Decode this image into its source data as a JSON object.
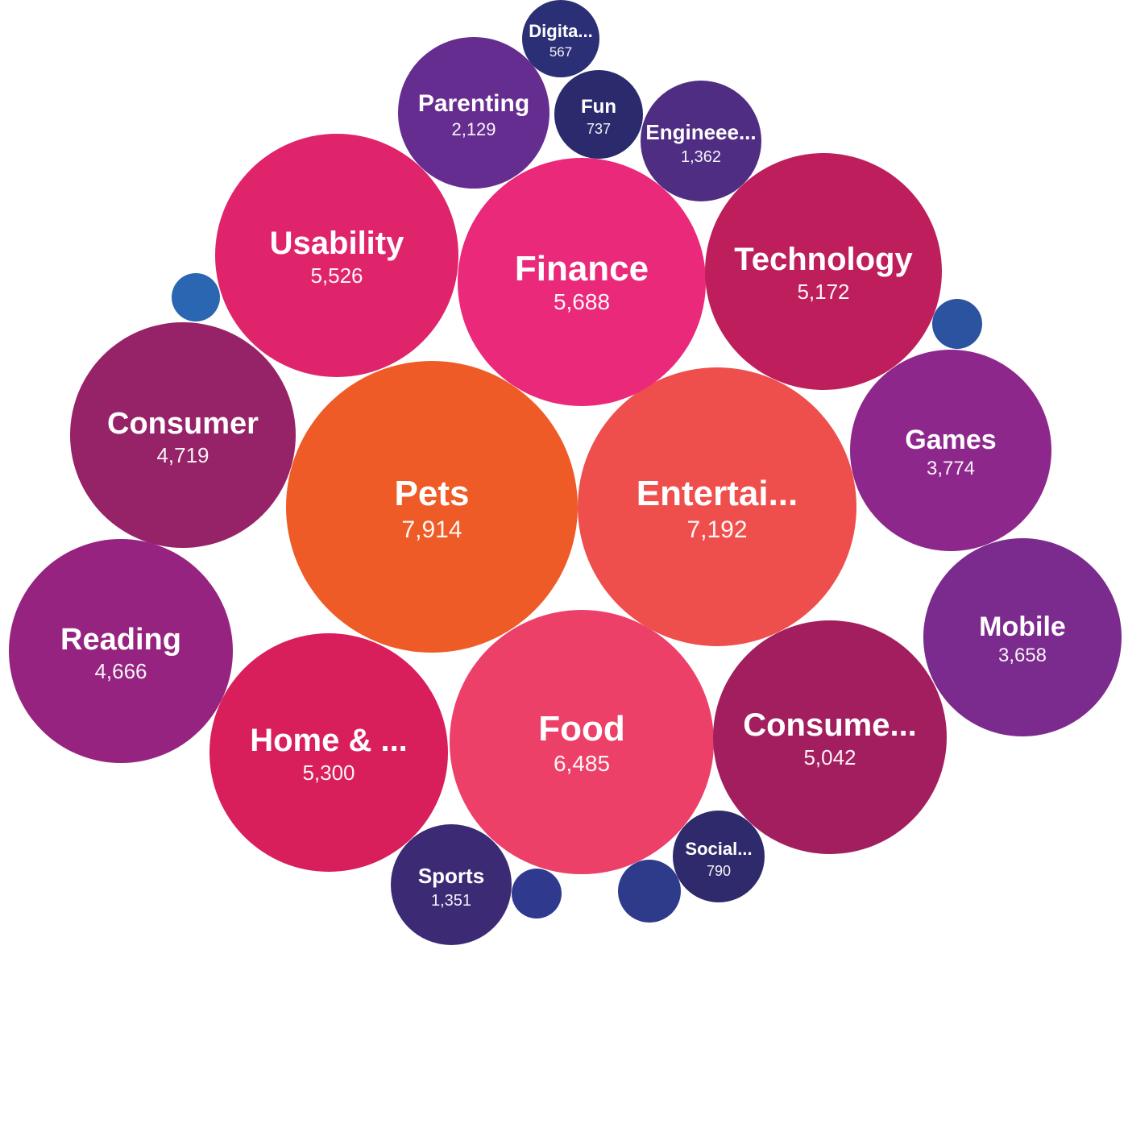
{
  "chart_data": {
    "type": "bubble",
    "title": "",
    "series": [
      {
        "label": "Pets",
        "value": "7,914",
        "color": "#ef5b26"
      },
      {
        "label": "Entertai...",
        "value": "7,192",
        "color": "#ee4f4d"
      },
      {
        "label": "Food",
        "value": "6,485",
        "color": "#ec4069"
      },
      {
        "label": "Finance",
        "value": "5,688",
        "color": "#ea297a"
      },
      {
        "label": "Usability",
        "value": "5,526",
        "color": "#e0246c"
      },
      {
        "label": "Home & ...",
        "value": "5,300",
        "color": "#d81e5b"
      },
      {
        "label": "Technology",
        "value": "5,172",
        "color": "#be1e5b"
      },
      {
        "label": "Consume...",
        "value": "5,042",
        "color": "#a21e5f"
      },
      {
        "label": "Consumer",
        "value": "4,719",
        "color": "#962267"
      },
      {
        "label": "Reading",
        "value": "4,666",
        "color": "#962380"
      },
      {
        "label": "Games",
        "value": "3,774",
        "color": "#8e278c"
      },
      {
        "label": "Mobile",
        "value": "3,658",
        "color": "#7b2a8d"
      },
      {
        "label": "Parenting",
        "value": "2,129",
        "color": "#662d91"
      },
      {
        "label": "Engineee...",
        "value": "1,362",
        "color": "#4f2d83"
      },
      {
        "label": "Sports",
        "value": "1,351",
        "color": "#3c2a75"
      },
      {
        "label": "Social...",
        "value": "790",
        "color": "#2e2a6c"
      },
      {
        "label": "Fun",
        "value": "737",
        "color": "#2b2a6d"
      },
      {
        "label": "Digita...",
        "value": "567",
        "color": "#2b2f75"
      },
      {
        "label": "",
        "value": "",
        "color": "#2a66b1"
      },
      {
        "label": "",
        "value": "",
        "color": "#2b53a0"
      },
      {
        "label": "",
        "value": "",
        "color": "#2f3a8f"
      },
      {
        "label": "",
        "value": "",
        "color": "#2e3b8b"
      }
    ]
  }
}
